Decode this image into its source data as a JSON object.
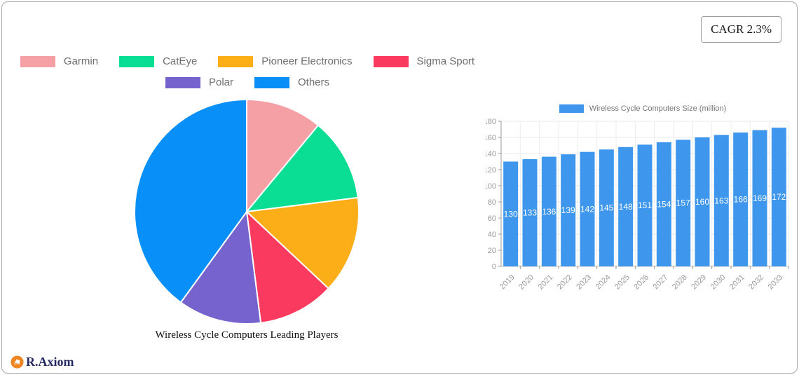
{
  "cagr": {
    "label": "CAGR 2.3%"
  },
  "logo": {
    "text": "R.Axiom",
    "icon_color": "#f08421",
    "text_color": "#252a63"
  },
  "pie_legend": {
    "rows": [
      [
        "Garmin",
        "CatEye",
        "Pioneer Electronics",
        "Sigma Sport"
      ],
      [
        "Polar",
        "Others"
      ]
    ]
  },
  "chart_data": [
    {
      "type": "pie",
      "title": "Wireless Cycle Computers Leading Players",
      "labels": [
        "Garmin",
        "CatEye",
        "Pioneer Electronics",
        "Sigma Sport",
        "Polar",
        "Others"
      ],
      "values": [
        11,
        12,
        14,
        11,
        12,
        40
      ],
      "colors": [
        "#f5a0a5",
        "#0ade94",
        "#fbae17",
        "#fa3b5f",
        "#7663ce",
        "#0890f8"
      ],
      "start_angle_deg": 0,
      "direction": "clockwise",
      "legend_position": "top",
      "slice_border_color": "#ffffff"
    },
    {
      "type": "bar",
      "legend": "Wireless Cycle Computers Size (million)",
      "categories": [
        "2019",
        "2020",
        "2021",
        "2022",
        "2023",
        "2024",
        "2025",
        "2026",
        "2027",
        "2028",
        "2029",
        "2030",
        "2031",
        "2032",
        "2033"
      ],
      "values": [
        130,
        133,
        136,
        139,
        142,
        145,
        148,
        151,
        154,
        157,
        160,
        163,
        166,
        169,
        172
      ],
      "ylim": [
        0,
        180
      ],
      "ytick_step": 20,
      "bar_color": "#3e97ec",
      "value_label_color": "#ffffff",
      "axis_text_color": "#999999",
      "grid": true,
      "legend_position": "top"
    }
  ]
}
